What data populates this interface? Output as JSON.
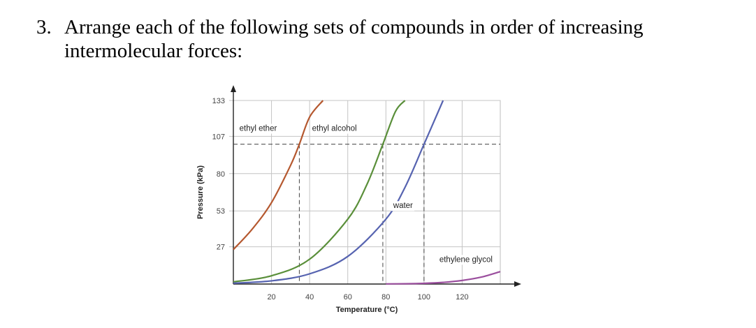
{
  "question": {
    "number": "3.",
    "text": "Arrange each of the following sets of compounds in order of increasing intermolecular forces:"
  },
  "chart_data": {
    "type": "line",
    "xlabel": "Temperature (°C)",
    "ylabel": "Pressure (kPa)",
    "xlim": [
      0,
      140
    ],
    "ylim": [
      0,
      133
    ],
    "x_ticks": [
      "20",
      "40",
      "60",
      "80",
      "100",
      "120"
    ],
    "y_ticks": [
      "27",
      "53",
      "80",
      "107",
      "133"
    ],
    "grid": true,
    "reference_pressure": 101.3,
    "series": [
      {
        "name": "ethyl ether",
        "color": "#b5582f",
        "x": [
          0,
          10,
          20,
          30,
          34.6,
          40,
          47
        ],
        "y": [
          25,
          40,
          59,
          86,
          101.3,
          121,
          133
        ]
      },
      {
        "name": "ethyl alcohol",
        "color": "#5a8f3a",
        "x": [
          0,
          20,
          40,
          60,
          70,
          78.4,
          85,
          90
        ],
        "y": [
          1.6,
          6,
          18,
          47,
          72,
          101.3,
          125,
          133
        ]
      },
      {
        "name": "water",
        "color": "#5663b0",
        "x": [
          0,
          20,
          40,
          60,
          80,
          90,
          100,
          110
        ],
        "y": [
          0.6,
          2.3,
          7.4,
          20,
          47,
          70,
          101.3,
          133
        ]
      },
      {
        "name": "ethylene glycol",
        "color": "#9b4f9e",
        "x": [
          80,
          90,
          100,
          110,
          120,
          130,
          140
        ],
        "y": [
          0.1,
          0.2,
          0.5,
          1.2,
          2.6,
          5,
          9
        ]
      }
    ],
    "boiling_points": [
      34.6,
      78.4,
      100
    ]
  }
}
